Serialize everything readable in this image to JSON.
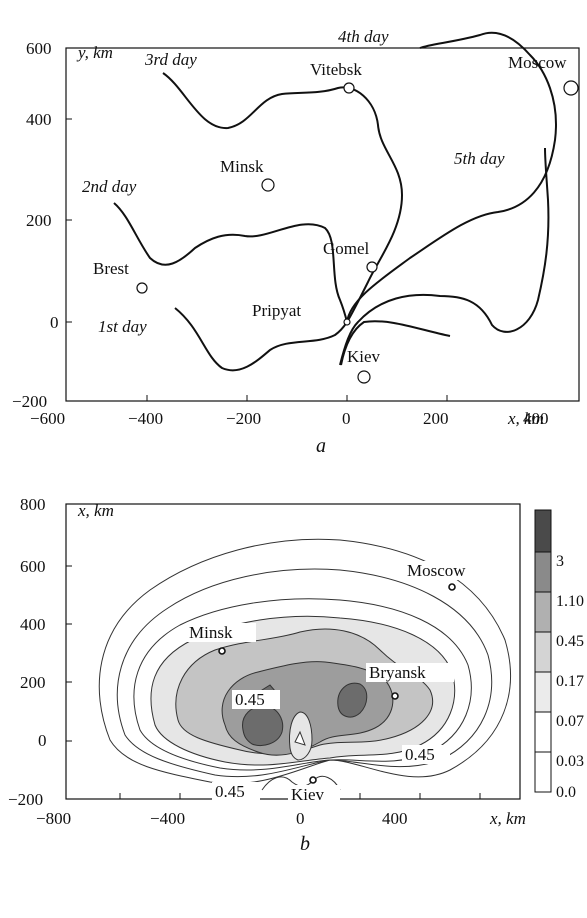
{
  "chart_data": [
    {
      "panel": "a",
      "type": "map",
      "xlabel": "x, km",
      "ylabel": "y, km",
      "xlim": [
        -600,
        600
      ],
      "ylim": [
        -200,
        600
      ],
      "x_ticks": [
        "−600",
        "−400",
        "−200",
        "0",
        "200",
        "400",
        "x, km"
      ],
      "y_ticks": [
        "600",
        "400",
        "200",
        "0",
        "−200"
      ],
      "cities": [
        {
          "name": "Vitebsk",
          "x": 0,
          "y": 460
        },
        {
          "name": "Moscow",
          "x": 570,
          "y": 460
        },
        {
          "name": "Minsk",
          "x": -175,
          "y": 270
        },
        {
          "name": "Gomel",
          "x": 50,
          "y": 110
        },
        {
          "name": "Brest",
          "x": -445,
          "y": 65
        },
        {
          "name": "Pripyat",
          "x": 0,
          "y": 0
        },
        {
          "name": "Kiev",
          "x": 35,
          "y": -110
        }
      ],
      "front_labels": [
        "1st day",
        "2nd day",
        "3rd day",
        "4th day",
        "5th day"
      ]
    },
    {
      "panel": "b",
      "type": "contour",
      "xlabel": "x, km",
      "ylabel": "x, km",
      "xlim": [
        -800,
        650
      ],
      "ylim": [
        -300,
        800
      ],
      "x_ticks": [
        "−800",
        "−400",
        "0",
        "400",
        "x, km"
      ],
      "y_ticks": [
        "800",
        "600",
        "400",
        "200",
        "0",
        "−200"
      ],
      "cities": [
        {
          "name": "Moscow",
          "x": 490,
          "y": 515
        },
        {
          "name": "Minsk",
          "x": -260,
          "y": 300
        },
        {
          "name": "Bryansk",
          "x": 300,
          "y": 160
        },
        {
          "name": "Kiev",
          "x": 40,
          "y": -120
        }
      ],
      "contour_labels": [
        "0.45",
        "0.45",
        "0.45"
      ],
      "legend_levels": [
        "3",
        "1.10",
        "0.45",
        "0.17",
        "0.07",
        "0.03",
        "0.0"
      ]
    }
  ],
  "captions": {
    "a": "a",
    "b": "b"
  }
}
